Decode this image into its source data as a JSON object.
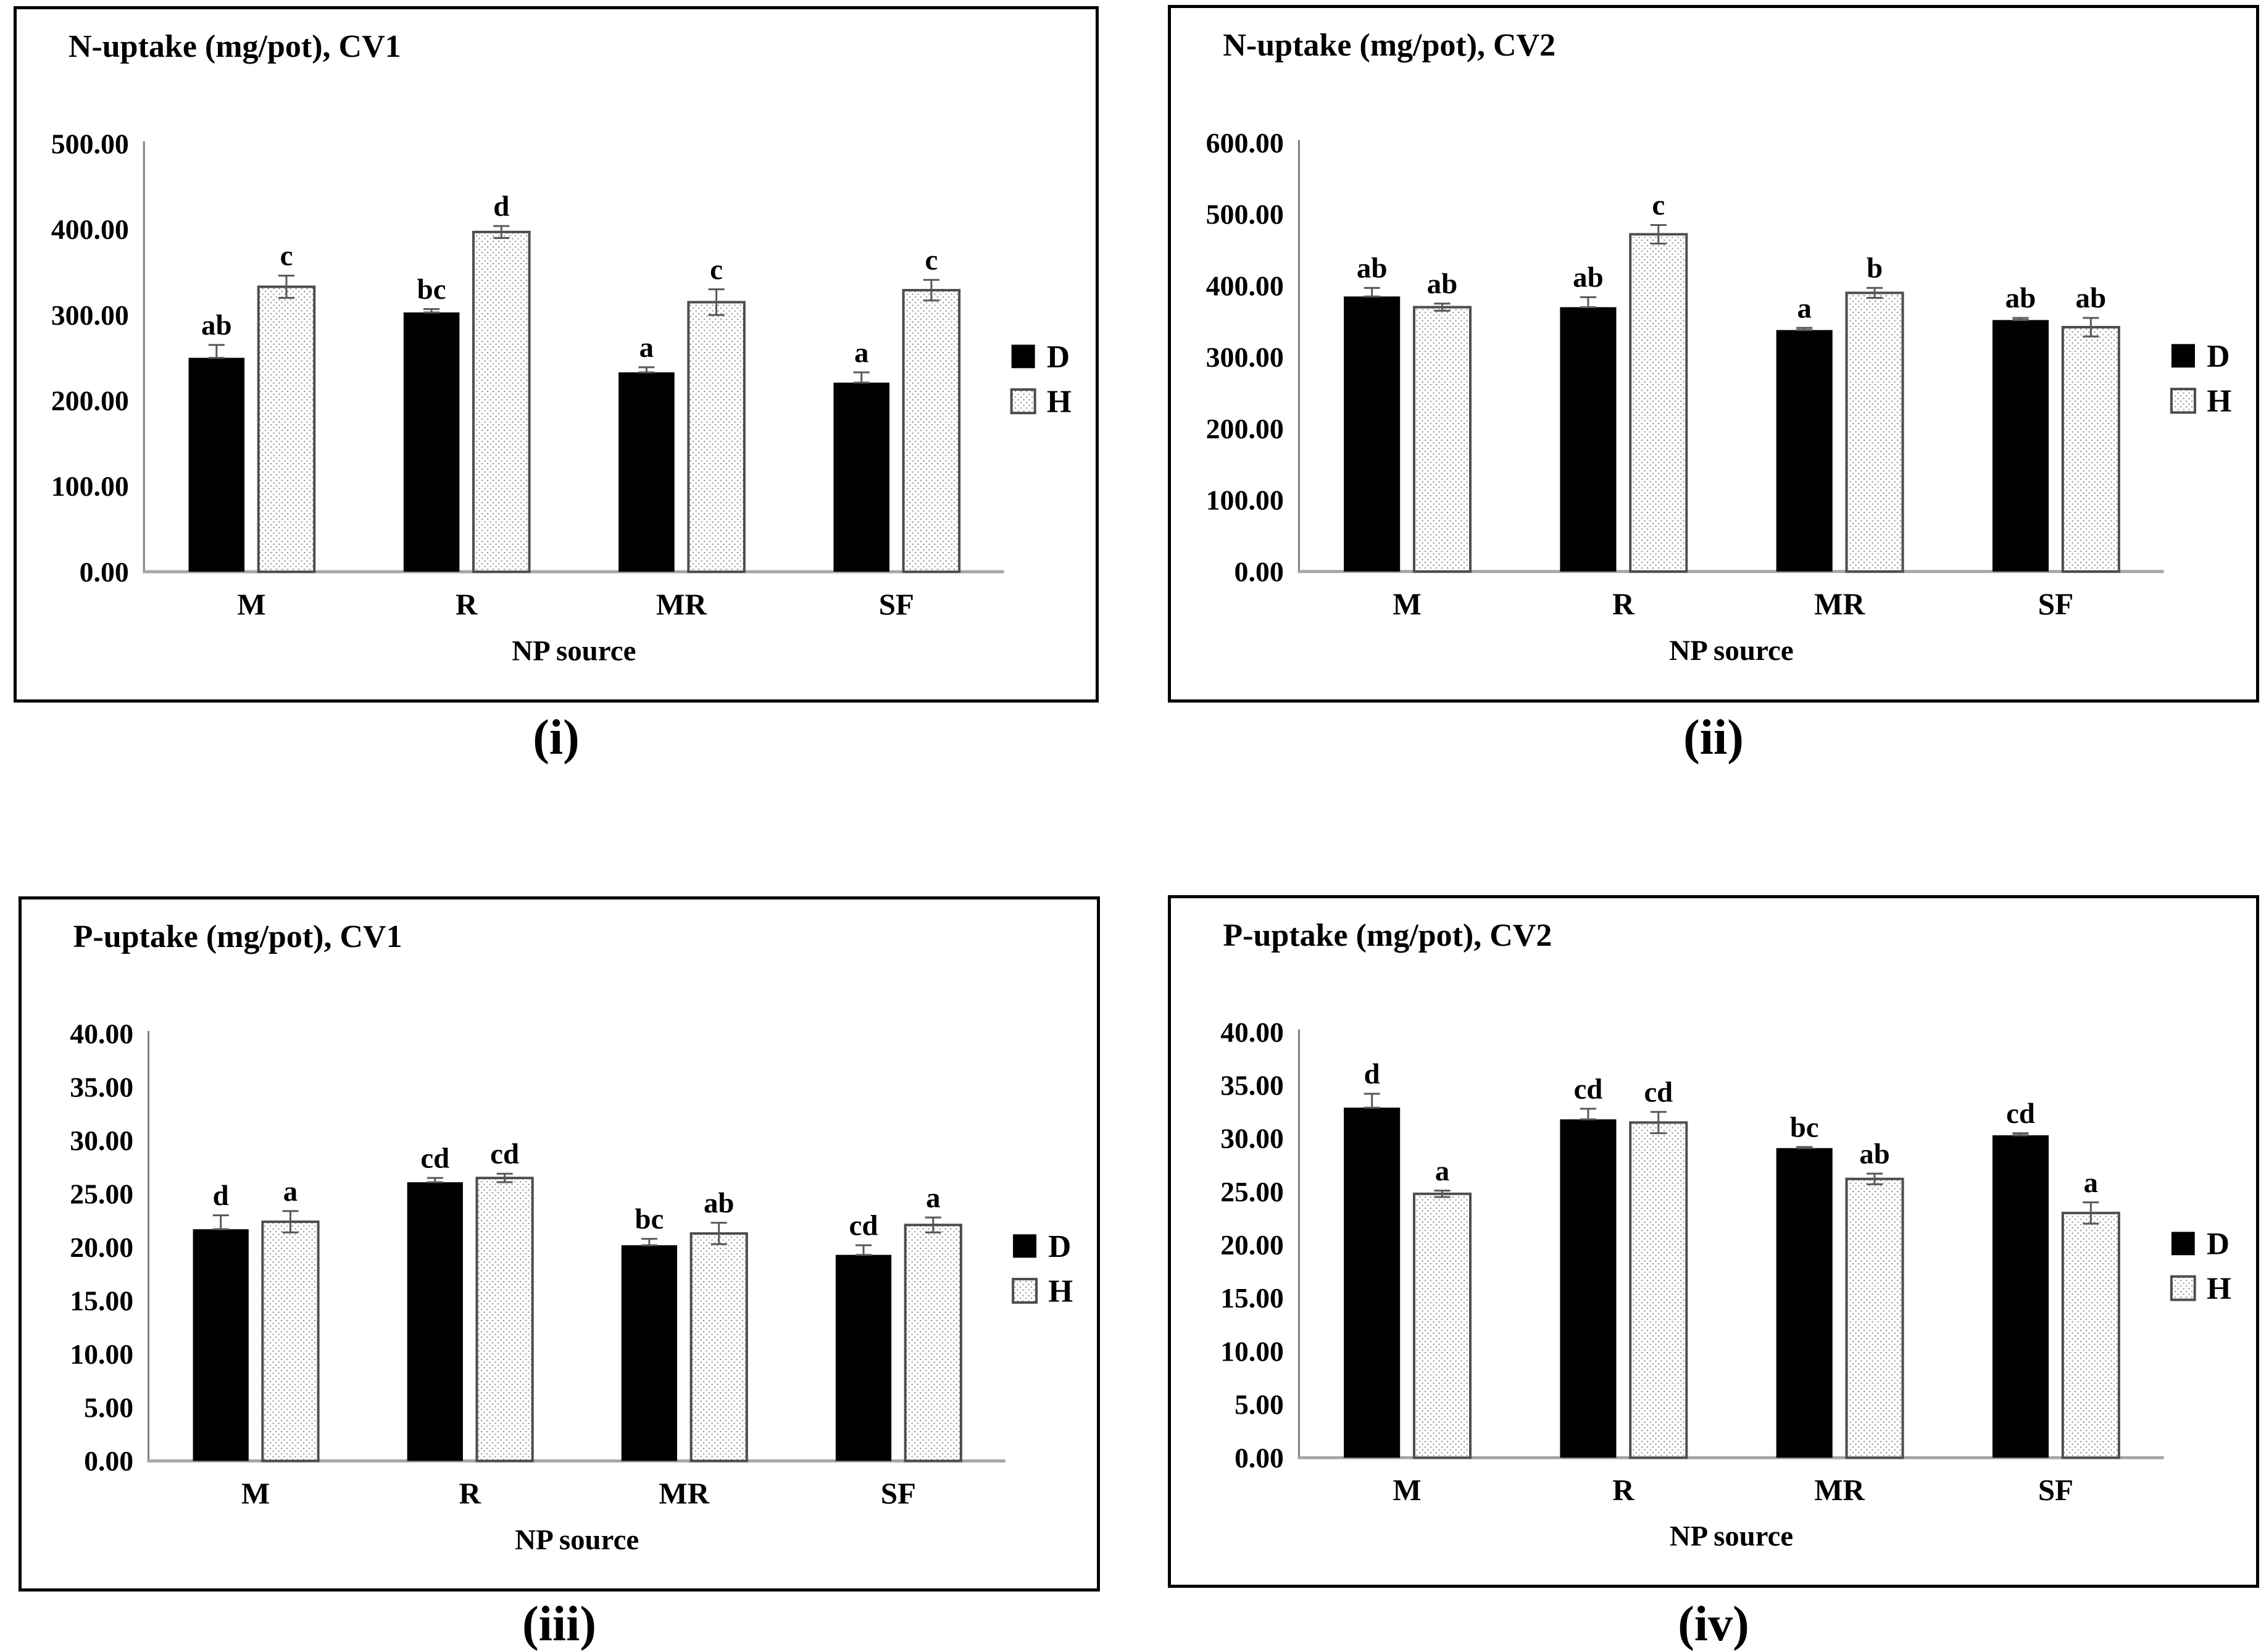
{
  "figure": {
    "xlabel": "NP source",
    "categories": [
      "M",
      "R",
      "MR",
      "SF"
    ],
    "legend": {
      "d_label": "D",
      "h_label": "H"
    }
  },
  "colors": {
    "bar_d": "#000000",
    "bar_h_fill": "#ffffff",
    "bar_h_border": "#4d4d4d",
    "dot": "#9a9a9a",
    "axis_line": "#7f7f7f",
    "baseline": "#a6a6a6",
    "error_bar": "#595959",
    "text": "#000000",
    "panel_border": "#000000"
  },
  "chart_data": [
    {
      "type": "bar",
      "title": "N-uptake (mg/pot), CV1",
      "caption": "(i)",
      "xlabel": "NP source",
      "ylim": [
        0,
        500
      ],
      "ystep": 100,
      "tick_decimals": 2,
      "grid": false,
      "legend_position": "right",
      "categories": [
        "M",
        "R",
        "MR",
        "SF"
      ],
      "series": [
        {
          "name": "D",
          "values": [
            250,
            303,
            233,
            221
          ],
          "errors": [
            15,
            4,
            6,
            12
          ],
          "letters": [
            "ab",
            "bc",
            "a",
            "a"
          ]
        },
        {
          "name": "H",
          "values": [
            333,
            397,
            315,
            329
          ],
          "errors": [
            13,
            7,
            15,
            12
          ],
          "letters": [
            "c",
            "d",
            "c",
            "c"
          ]
        }
      ]
    },
    {
      "type": "bar",
      "title": "N-uptake (mg/pot), CV2",
      "caption": "(ii)",
      "xlabel": "NP source",
      "ylim": [
        0,
        600
      ],
      "ystep": 100,
      "tick_decimals": 2,
      "grid": false,
      "legend_position": "right",
      "categories": [
        "M",
        "R",
        "MR",
        "SF"
      ],
      "series": [
        {
          "name": "D",
          "values": [
            385,
            370,
            338,
            352
          ],
          "errors": [
            12,
            14,
            3,
            3
          ],
          "letters": [
            "ab",
            "ab",
            "a",
            "ab"
          ]
        },
        {
          "name": "H",
          "values": [
            370,
            472,
            390,
            342
          ],
          "errors": [
            5,
            13,
            7,
            13
          ],
          "letters": [
            "ab",
            "c",
            "b",
            "ab"
          ]
        }
      ]
    },
    {
      "type": "bar",
      "title": "P-uptake (mg/pot), CV1",
      "caption": "(iii)",
      "xlabel": "NP source",
      "ylim": [
        0,
        40
      ],
      "ystep": 5,
      "tick_decimals": 2,
      "grid": false,
      "legend_position": "right",
      "categories": [
        "M",
        "R",
        "MR",
        "SF"
      ],
      "series": [
        {
          "name": "D",
          "values": [
            21.7,
            26.1,
            20.2,
            19.3
          ],
          "errors": [
            1.3,
            0.4,
            0.6,
            0.9
          ],
          "letters": [
            "d",
            "cd",
            "bc",
            "cd"
          ]
        },
        {
          "name": "H",
          "values": [
            22.4,
            26.5,
            21.3,
            22.1
          ],
          "errors": [
            1.0,
            0.4,
            1.0,
            0.7
          ],
          "letters": [
            "a",
            "cd",
            "ab",
            "a"
          ]
        }
      ]
    },
    {
      "type": "bar",
      "title": "P-uptake (mg/pot), CV2",
      "caption": "(iv)",
      "xlabel": "NP source",
      "ylim": [
        0,
        40
      ],
      "ystep": 5,
      "tick_decimals": 2,
      "grid": false,
      "legend_position": "right",
      "categories": [
        "M",
        "R",
        "MR",
        "SF"
      ],
      "series": [
        {
          "name": "D",
          "values": [
            32.9,
            31.8,
            29.1,
            30.3
          ],
          "errors": [
            1.3,
            1.0,
            0.1,
            0.2
          ],
          "letters": [
            "d",
            "cd",
            "bc",
            "cd"
          ]
        },
        {
          "name": "H",
          "values": [
            24.8,
            31.5,
            26.2,
            23.0
          ],
          "errors": [
            0.3,
            1.0,
            0.5,
            1.0
          ],
          "letters": [
            "a",
            "cd",
            "ab",
            "a"
          ]
        }
      ]
    }
  ]
}
